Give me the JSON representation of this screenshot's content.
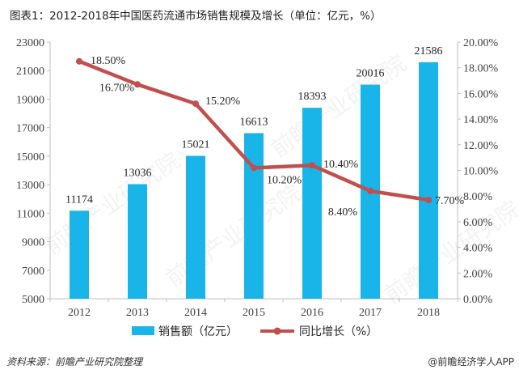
{
  "title": "图表1：2012-2018年中国医药流通市场销售规模及增长（单位：亿元，%）",
  "footer": {
    "source": "资料来源：前瞻产业研究院整理",
    "brand": "@前瞻经济学人APP"
  },
  "watermark": "前瞻产业研究院",
  "colors": {
    "bar": "#19B4E8",
    "line": "#C0504D",
    "axis": "#bfbfbf",
    "text": "#404040"
  },
  "chart_data": {
    "type": "bar+line",
    "categories": [
      "2012",
      "2013",
      "2014",
      "2015",
      "2016",
      "2017",
      "2018"
    ],
    "series": [
      {
        "name": "销售额（亿元）",
        "type": "bar",
        "axis": "left",
        "values": [
          11174,
          13036,
          15021,
          16613,
          18393,
          20016,
          21586
        ],
        "labels": [
          "11174",
          "13036",
          "15021",
          "16613",
          "18393",
          "20016",
          "21586"
        ]
      },
      {
        "name": "同比增长（%）",
        "type": "line",
        "axis": "right",
        "values": [
          18.5,
          16.7,
          15.2,
          10.2,
          10.4,
          8.4,
          7.7
        ],
        "labels": [
          "18.50%",
          "16.70%",
          "15.20%",
          "10.20%",
          "10.40%",
          "8.40%",
          "7.70%"
        ]
      }
    ],
    "y_left": {
      "min": 5000,
      "max": 23000,
      "ticks": [
        "5000",
        "7000",
        "9000",
        "11000",
        "13000",
        "15000",
        "17000",
        "19000",
        "21000",
        "23000"
      ]
    },
    "y_right": {
      "min": 0,
      "max": 20,
      "ticks": [
        "0.00%",
        "2.00%",
        "4.00%",
        "6.00%",
        "8.00%",
        "10.00%",
        "12.00%",
        "14.00%",
        "16.00%",
        "18.00%",
        "20.00%"
      ]
    },
    "legend": {
      "position": "bottom",
      "items": [
        "销售额（亿元）",
        "同比增长（%）"
      ]
    }
  }
}
